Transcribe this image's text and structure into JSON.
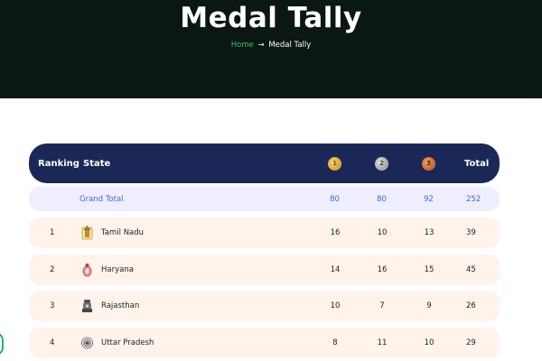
{
  "header": {
    "title": "Medal Tally",
    "breadcrumb": {
      "home": "Home",
      "separator": "→",
      "current": "Medal Tally"
    }
  },
  "table": {
    "columns": {
      "rank": "Ranking",
      "state": "State",
      "gold": "1",
      "silver": "2",
      "bronze": "3",
      "total": "Total"
    },
    "grand_total": {
      "label": "Grand Total",
      "gold": "80",
      "silver": "80",
      "bronze": "92",
      "total": "252"
    },
    "rows": [
      {
        "rank": "1",
        "state": "Tamil Nadu",
        "gold": "16",
        "silver": "10",
        "bronze": "13",
        "total": "39",
        "emblem": "tamil-nadu-emblem-icon"
      },
      {
        "rank": "2",
        "state": "Haryana",
        "gold": "14",
        "silver": "16",
        "bronze": "15",
        "total": "45",
        "emblem": "haryana-emblem-icon"
      },
      {
        "rank": "3",
        "state": "Rajasthan",
        "gold": "10",
        "silver": "7",
        "bronze": "9",
        "total": "26",
        "emblem": "rajasthan-emblem-icon"
      },
      {
        "rank": "4",
        "state": "Uttar Pradesh",
        "gold": "8",
        "silver": "11",
        "bronze": "10",
        "total": "29",
        "emblem": "uttar-pradesh-emblem-icon"
      }
    ]
  },
  "colors": {
    "hero_bg": "#0b1712",
    "header_bg": "#1b2857",
    "grand_bg": "#eeeeff",
    "row_bg": "#fff3ec",
    "accent": "#33c46b",
    "grand_text": "#3b6cd1"
  }
}
